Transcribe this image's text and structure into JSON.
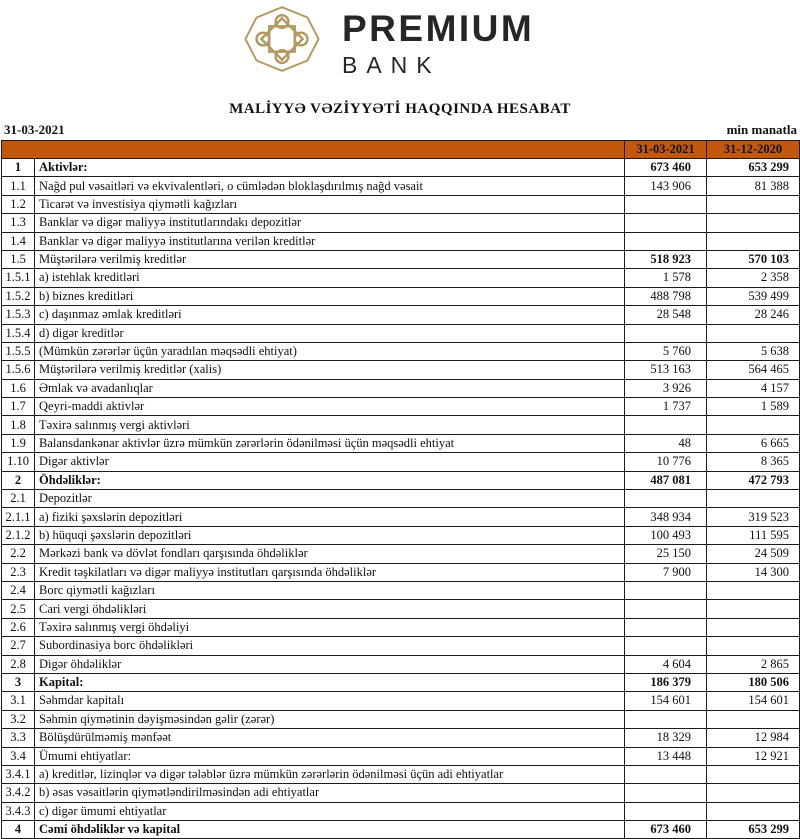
{
  "brand": {
    "name": "PREMIUM",
    "subname": "BANK",
    "text_color": "#262626",
    "emblem_color": "#b3995e",
    "emblem_icon": "celtic-knot-octagon"
  },
  "title": "MALİYYƏ VƏZİYYƏTİ HAQQINDA HESABAT",
  "meta": {
    "report_date": "31-03-2021",
    "unit": "min manatla"
  },
  "table": {
    "columns": {
      "current": "31-03-2021",
      "previous": "31-12-2020"
    },
    "colors": {
      "header_bg": "#c4570e",
      "row_alt_bg": "#f8cbad",
      "row_bg": "#ffffff",
      "border": "#1c1c1c"
    },
    "rows": [
      {
        "no": "1",
        "label": "Aktivlər:",
        "v1": "673 460",
        "v2": "653 299",
        "bold": true
      },
      {
        "no": "1.1",
        "label": "Nağd pul vəsaitləri və  ekvivalentləri, o cümlədən bloklaşdırılmış nağd vəsait",
        "v1": "143 906",
        "v2": "81 388"
      },
      {
        "no": "1.2",
        "label": "Ticarət və investisiya qiymətli kağızları",
        "v1": "",
        "v2": ""
      },
      {
        "no": "1.3",
        "label": "Banklar və digər maliyyə institutlarındakı depozitlər",
        "v1": "",
        "v2": ""
      },
      {
        "no": "1.4",
        "label": "Banklar və digər maliyyə institutlarına verilən kreditlər",
        "v1": "",
        "v2": ""
      },
      {
        "no": "1.5",
        "label": "Müştərilərə verilmiş kreditlər",
        "v1": "518 923",
        "v2": "570 103",
        "bold_values": true
      },
      {
        "no": "1.5.1",
        "label": "a) istehlak kreditləri",
        "v1": "1 578",
        "v2": "2 358"
      },
      {
        "no": "1.5.2",
        "label": "b) biznes kreditləri",
        "v1": "488 798",
        "v2": "539 499"
      },
      {
        "no": "1.5.3",
        "label": "c) daşınmaz əmlak kreditləri",
        "v1": "28 548",
        "v2": "28 246"
      },
      {
        "no": "1.5.4",
        "label": "d) digər kreditlər",
        "v1": "",
        "v2": ""
      },
      {
        "no": "1.5.5",
        "label": "(Mümkün zərərlər üçün yaradılan məqsədli ehtiyat)",
        "v1": "5 760",
        "v2": "5 638"
      },
      {
        "no": "1.5.6",
        "label": "Müştərilərə verilmiş kreditlər (xalis)",
        "v1": "513 163",
        "v2": "564 465"
      },
      {
        "no": "1.6",
        "label": "Əmlak və avadanlıqlar",
        "v1": "3 926",
        "v2": "4 157"
      },
      {
        "no": "1.7",
        "label": "Qeyri-maddi aktivlər",
        "v1": "1 737",
        "v2": "1 589"
      },
      {
        "no": "1.8",
        "label": "Təxirə salınmış vergi aktivləri",
        "v1": "",
        "v2": ""
      },
      {
        "no": "1.9",
        "label": "Balansdankənar aktivlər üzrə mümkün zərərlərin ödənilməsi üçün məqsədli ehtiyat",
        "v1": "48",
        "v2": "6 665"
      },
      {
        "no": "1.10",
        "label": "Digər aktivlər",
        "v1": "10 776",
        "v2": "8 365"
      },
      {
        "no": "2",
        "label": "Öhdəliklər:",
        "v1": "487 081",
        "v2": "472 793",
        "bold": true
      },
      {
        "no": "2.1",
        "label": "Depozitlər",
        "v1": "",
        "v2": ""
      },
      {
        "no": "2.1.1",
        "label": "a) fiziki şəxslərin depozitləri",
        "v1": "348 934",
        "v2": "319 523"
      },
      {
        "no": "2.1.2",
        "label": "b) hüquqi şəxslərin depozitləri",
        "v1": "100 493",
        "v2": "111 595"
      },
      {
        "no": "2.2",
        "label": "Mərkəzi bank və dövlət fondları qarşısında öhdəliklər",
        "v1": "25 150",
        "v2": "24 509"
      },
      {
        "no": "2.3",
        "label": "Kredit təşkilatları və digər maliyyə institutları qarşısında öhdəliklər",
        "v1": "7 900",
        "v2": "14 300"
      },
      {
        "no": "2.4",
        "label": "Borc qiymətli kağızları",
        "v1": "",
        "v2": ""
      },
      {
        "no": "2.5",
        "label": "Cari vergi öhdəlikləri",
        "v1": "",
        "v2": ""
      },
      {
        "no": "2.6",
        "label": "Təxirə salınmış vergi öhdəliyi",
        "v1": "",
        "v2": ""
      },
      {
        "no": "2.7",
        "label": "Subordinasiya borc öhdəlikləri",
        "v1": "",
        "v2": ""
      },
      {
        "no": "2.8",
        "label": "Digər öhdəliklər",
        "v1": "4 604",
        "v2": "2 865"
      },
      {
        "no": "3",
        "label": "Kapital:",
        "v1": "186 379",
        "v2": "180 506",
        "bold": true
      },
      {
        "no": "3.1",
        "label": "Səhmdar kapitalı",
        "v1": "154 601",
        "v2": "154 601"
      },
      {
        "no": "3.2",
        "label": "Səhmin qiymətinin dəyişməsindən gəlir (zərər)",
        "v1": "",
        "v2": ""
      },
      {
        "no": "3.3",
        "label": "Bölüşdürülməmiş mənfəət",
        "v1": "18 329",
        "v2": "12 984"
      },
      {
        "no": "3.4",
        "label": "Ümumi ehtiyatlar:",
        "v1": "13 448",
        "v2": "12 921"
      },
      {
        "no": "3.4.1",
        "label": "a) kreditlər, lizinqlər və digər tələblər üzrə mümkün zərərlərin ödənilməsi üçün adi ehtiyatlar",
        "v1": "",
        "v2": ""
      },
      {
        "no": "3.4.2",
        "label": "b) əsas vəsaitlərin qiymətləndirilməsindən adi ehtiyatlar",
        "v1": "",
        "v2": ""
      },
      {
        "no": "3.4.3",
        "label": "c) digər ümumi ehtiyatlar",
        "v1": "",
        "v2": ""
      },
      {
        "no": "4",
        "label": "Cəmi öhdəliklər və kapital",
        "v1": "673 460",
        "v2": "653 299",
        "bold": true
      }
    ]
  }
}
